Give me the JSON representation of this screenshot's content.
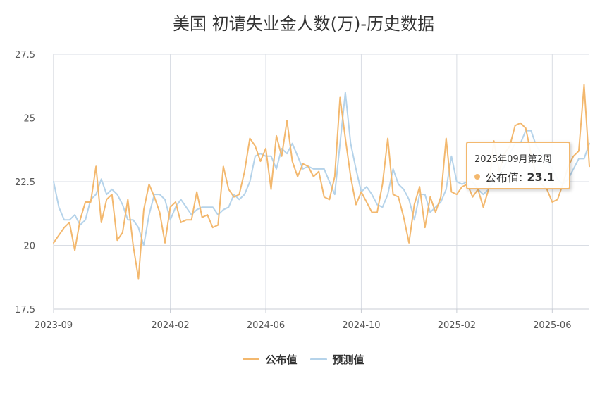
{
  "chart_data": {
    "type": "line",
    "title": "美国 初请失业金人数(万)-历史数据",
    "xlabel": "",
    "ylabel": "",
    "x_tick_labels": [
      "2023-09",
      "2024-02",
      "2024-06",
      "2024-10",
      "2025-02",
      "2025-06"
    ],
    "y_tick_labels": [
      "17.5",
      "20",
      "22.5",
      "25",
      "27.5"
    ],
    "ylim": [
      17.5,
      27.5
    ],
    "grid": true,
    "legend_position": "bottom",
    "colors": {
      "published": "#f3b86e",
      "forecast": "#b5d3ea",
      "grid": "#d9dde4",
      "axis": "#c8ccd4"
    },
    "series": [
      {
        "name": "公布值",
        "values": [
          20.1,
          20.4,
          20.7,
          20.9,
          19.8,
          21.0,
          21.7,
          21.7,
          23.1,
          20.9,
          21.8,
          22.0,
          20.2,
          20.5,
          21.8,
          20.0,
          18.7,
          21.4,
          22.4,
          21.9,
          21.3,
          20.1,
          21.5,
          21.7,
          20.9,
          21.0,
          21.0,
          22.1,
          21.1,
          21.2,
          20.7,
          20.8,
          23.1,
          22.2,
          21.9,
          22.0,
          22.9,
          24.2,
          23.9,
          23.3,
          23.8,
          22.2,
          24.3,
          23.5,
          24.9,
          23.3,
          22.7,
          23.2,
          23.1,
          22.7,
          22.9,
          21.9,
          21.8,
          22.7,
          25.8,
          24.2,
          22.7,
          21.6,
          22.1,
          21.7,
          21.3,
          21.3,
          22.4,
          24.2,
          22.0,
          21.9,
          21.1,
          20.1,
          21.6,
          22.3,
          20.7,
          21.9,
          21.3,
          21.9,
          24.2,
          22.1,
          22.0,
          22.3,
          22.4,
          21.9,
          22.2,
          21.5,
          22.2,
          24.1,
          22.9,
          23.6,
          23.9,
          24.7,
          24.8,
          24.6,
          23.6,
          22.7,
          22.4,
          22.2,
          21.7,
          21.8,
          22.4,
          23.1,
          23.5,
          23.7,
          26.3,
          23.1
        ]
      },
      {
        "name": "预测值",
        "values": [
          22.5,
          21.5,
          21.0,
          21.0,
          21.2,
          20.8,
          21.0,
          21.8,
          22.0,
          22.6,
          22.0,
          22.2,
          22.0,
          21.6,
          21.0,
          21.0,
          20.7,
          20.0,
          21.2,
          22.0,
          22.0,
          21.8,
          21.0,
          21.5,
          21.8,
          21.5,
          21.2,
          21.4,
          21.5,
          21.5,
          21.5,
          21.2,
          21.4,
          21.5,
          22.0,
          21.8,
          22.0,
          22.5,
          23.5,
          23.6,
          23.5,
          23.5,
          23.0,
          23.8,
          23.6,
          24.0,
          23.5,
          23.0,
          23.1,
          23.0,
          23.0,
          23.0,
          22.5,
          22.0,
          24.0,
          26.0,
          24.0,
          23.0,
          22.1,
          22.3,
          22.0,
          21.6,
          21.5,
          22.0,
          23.0,
          22.4,
          22.2,
          21.8,
          21.0,
          22.0,
          22.0,
          21.3,
          21.5,
          21.7,
          22.2,
          23.5,
          22.5,
          22.4,
          22.5,
          22.5,
          22.2,
          22.0,
          22.2,
          22.5,
          22.8,
          23.1,
          23.6,
          24.0,
          24.0,
          24.5,
          24.5,
          23.9,
          23.6,
          23.3,
          23.0,
          22.6,
          22.4,
          22.6,
          23.0,
          23.4,
          23.4,
          24.0
        ]
      }
    ]
  },
  "tooltip": {
    "date": "2025年09月第2周",
    "series_name": "公布值",
    "value_text": "23.1"
  }
}
